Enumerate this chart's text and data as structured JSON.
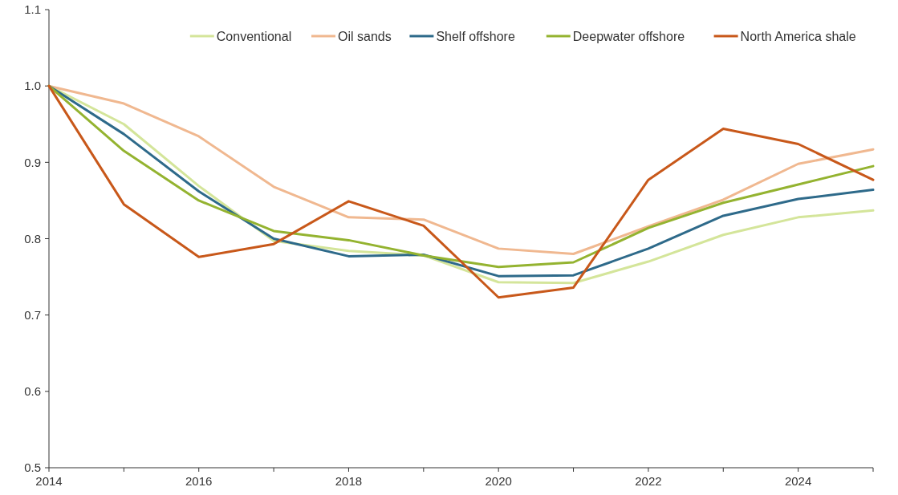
{
  "chart_data": {
    "type": "line",
    "x": [
      2014,
      2015,
      2016,
      2017,
      2018,
      2019,
      2020,
      2021,
      2022,
      2023,
      2024,
      2025
    ],
    "xlim": [
      2014,
      2025
    ],
    "xticks": [
      2014,
      {
        "value": 2015,
        "label": null
      },
      2016,
      {
        "value": 2017,
        "label": null
      },
      2018,
      {
        "value": 2019,
        "label": null
      },
      2020,
      {
        "value": 2021,
        "label": null
      },
      2022,
      {
        "value": 2023,
        "label": null
      },
      2024,
      {
        "value": 2025,
        "label": null
      }
    ],
    "ylim": [
      0.5,
      1.1
    ],
    "yticks": [
      0.5,
      0.6,
      0.7,
      0.8,
      0.9,
      {
        "value": 1,
        "label": "1.0"
      },
      1.1
    ],
    "grid": false,
    "legend": "top right",
    "marker": "none",
    "line_style": "solid",
    "series": [
      {
        "name": "Conventional",
        "color": "#d4e59a",
        "values": [
          1.0,
          0.95,
          0.869,
          0.797,
          0.784,
          0.778,
          0.743,
          0.742,
          0.77,
          0.805,
          0.828,
          0.837
        ]
      },
      {
        "name": "Oil sands",
        "color": "#f0b890",
        "values": [
          1.0,
          0.977,
          0.934,
          0.868,
          0.828,
          0.825,
          0.787,
          0.78,
          0.816,
          0.851,
          0.898,
          0.917
        ]
      },
      {
        "name": "Shelf offshore",
        "color": "#2e6a8a",
        "values": [
          1.0,
          0.937,
          0.862,
          0.8,
          0.777,
          0.779,
          0.751,
          0.752,
          0.787,
          0.83,
          0.852,
          0.864
        ]
      },
      {
        "name": "Deepwater offshore",
        "color": "#94b330",
        "values": [
          1.0,
          0.915,
          0.85,
          0.81,
          0.798,
          0.778,
          0.763,
          0.769,
          0.814,
          0.847,
          0.871,
          0.895
        ]
      },
      {
        "name": "North America shale",
        "color": "#c8581a",
        "values": [
          1.0,
          0.845,
          0.776,
          0.793,
          0.849,
          0.817,
          0.723,
          0.736,
          0.877,
          0.944,
          0.924,
          0.877
        ]
      }
    ]
  }
}
